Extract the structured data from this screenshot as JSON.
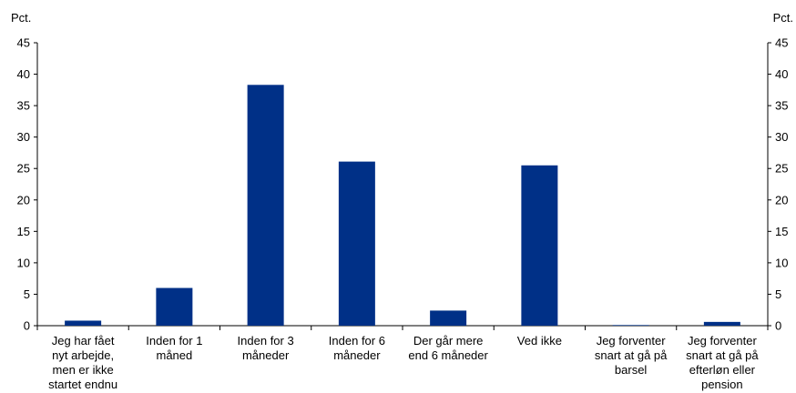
{
  "chart_data": {
    "type": "bar",
    "y_unit_left": "Pct.",
    "y_unit_right": "Pct.",
    "ylim": [
      0,
      45
    ],
    "yticks": [
      0,
      5,
      10,
      15,
      20,
      25,
      30,
      35,
      40,
      45
    ],
    "categories": [
      "Jeg har fået\nnyt arbejde,\nmen er ikke\nstartet endnu",
      "Inden for 1\nmåned",
      "Inden for 3\nmåneder",
      "Inden for 6\nmåneder",
      "Der går mere\nend 6 måneder",
      "Ved ikke",
      "Jeg forventer\nsnart at gå på\nbarsel",
      "Jeg forventer\nsnart at gå på\nefterløn eller\npension"
    ],
    "values": [
      0.8,
      6.0,
      38.3,
      26.1,
      2.4,
      25.5,
      0.1,
      0.6
    ],
    "bar_color": "#003087",
    "grid": false
  }
}
